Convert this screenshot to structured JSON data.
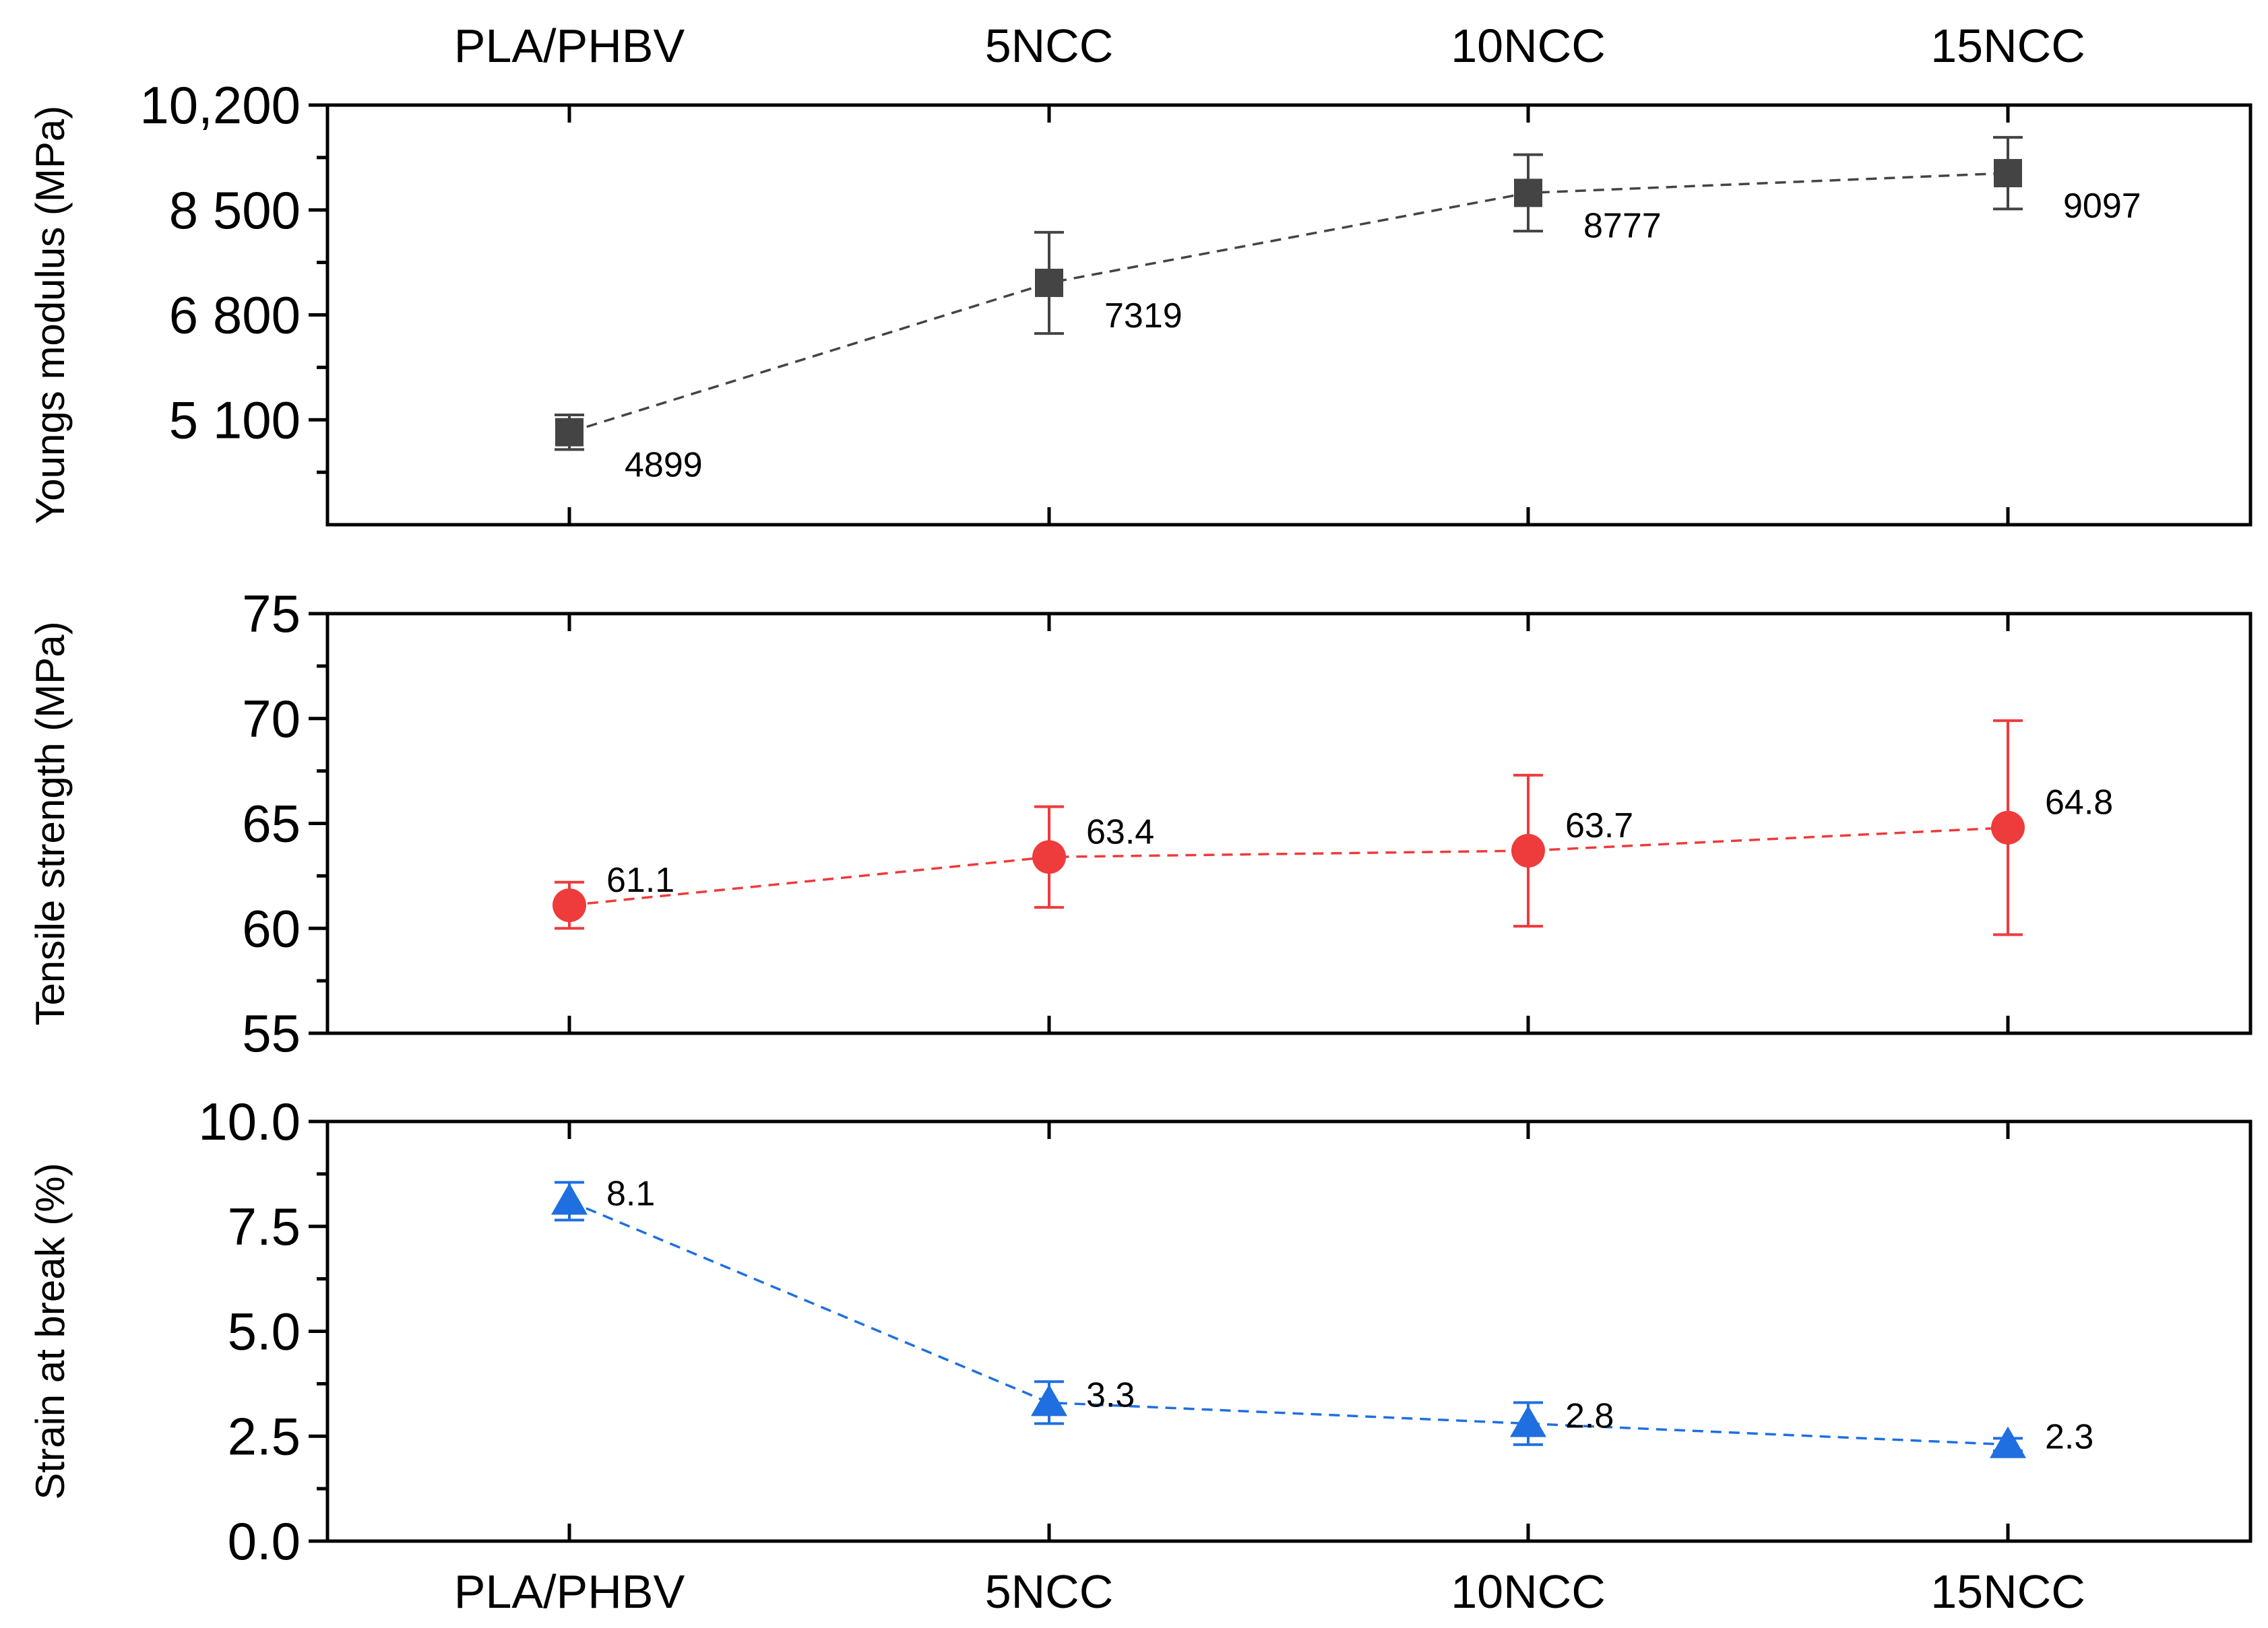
{
  "chart_data": [
    {
      "type": "line",
      "ylabel": "Youngs modulus (MPa)",
      "categories": [
        "PLA/PHBV",
        "5NCC",
        "10NCC",
        "15NCC"
      ],
      "values": [
        4899,
        7319,
        8777,
        9097
      ],
      "error": [
        280,
        820,
        620,
        580
      ],
      "data_labels": [
        "4899",
        "7319",
        "8777",
        "9097"
      ],
      "ylim": [
        3400,
        10200
      ],
      "yticks": [
        5100,
        6800,
        8500,
        10200
      ],
      "ytick_labels": [
        "5 100",
        "6 800",
        "8 500",
        "10,200"
      ],
      "minor_yticks": [
        4250,
        5950,
        7650,
        9350
      ],
      "marker": "square",
      "color": "#444444"
    },
    {
      "type": "line",
      "ylabel": "Tensile strength (MPa)",
      "categories": [
        "PLA/PHBV",
        "5NCC",
        "10NCC",
        "15NCC"
      ],
      "values": [
        61.1,
        63.4,
        63.7,
        64.8
      ],
      "error": [
        1.1,
        2.4,
        3.6,
        5.1
      ],
      "data_labels": [
        "61.1",
        "63.4",
        "63.7",
        "64.8"
      ],
      "ylim": [
        55,
        75
      ],
      "yticks": [
        55,
        60,
        65,
        70,
        75
      ],
      "ytick_labels": [
        "55",
        "60",
        "65",
        "70",
        "75"
      ],
      "minor_yticks": [
        57.5,
        62.5,
        67.5,
        72.5
      ],
      "marker": "circle",
      "color": "#ee3b3b"
    },
    {
      "type": "line",
      "ylabel": "Strain at break (%)",
      "categories": [
        "PLA/PHBV",
        "5NCC",
        "10NCC",
        "15NCC"
      ],
      "values": [
        8.1,
        3.3,
        2.8,
        2.3
      ],
      "error": [
        0.45,
        0.5,
        0.5,
        0.15
      ],
      "data_labels": [
        "8.1",
        "3.3",
        "2.8",
        "2.3"
      ],
      "ylim": [
        0,
        10
      ],
      "yticks": [
        0,
        2.5,
        5,
        7.5,
        10
      ],
      "ytick_labels": [
        "0.0",
        "2.5",
        "5.0",
        "7.5",
        "10.0"
      ],
      "minor_yticks": [
        1.25,
        3.75,
        6.25,
        8.75
      ],
      "marker": "triangle",
      "color": "#1f6fe0"
    }
  ],
  "top_axis_labels": [
    "PLA/PHBV",
    "5NCC",
    "10NCC",
    "15NCC"
  ],
  "bottom_axis_labels": [
    "PLA/PHBV",
    "5NCC",
    "10NCC",
    "15NCC"
  ]
}
